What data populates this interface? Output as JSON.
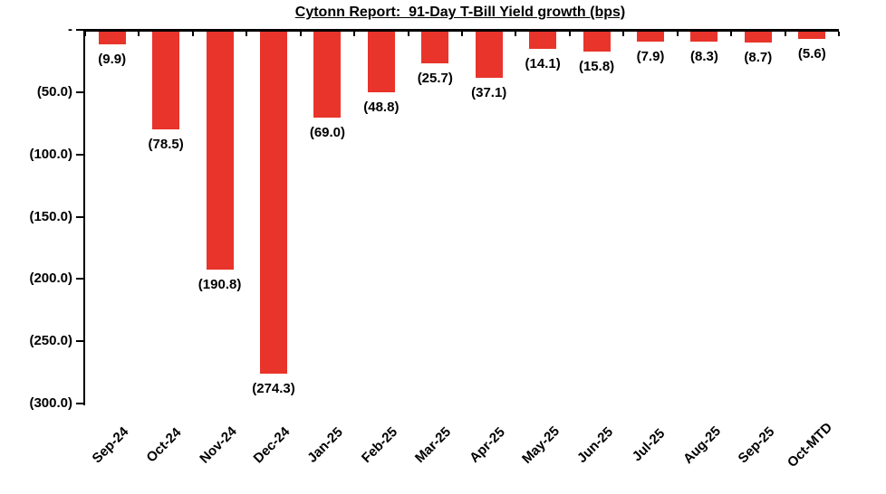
{
  "chart_data": {
    "type": "bar",
    "title": "Cytonn Report:  91-Day T-Bill Yield growth (bps)",
    "categories": [
      "Sep-24",
      "Oct-24",
      "Nov-24",
      "Dec-24",
      "Jan-25",
      "Feb-25",
      "Mar-25",
      "Apr-25",
      "May-25",
      "Jun-25",
      "Jul-25",
      "Aug-25",
      "Sep-25",
      "Oct-MTD"
    ],
    "values": [
      -9.9,
      -78.5,
      -190.8,
      -274.3,
      -69.0,
      -48.8,
      -25.7,
      -37.1,
      -14.1,
      -15.8,
      -7.9,
      -8.3,
      -8.7,
      -5.6
    ],
    "data_labels": [
      "(9.9)",
      "(78.5)",
      "(190.8)",
      "(274.3)",
      "(69.0)",
      "(48.8)",
      "(25.7)",
      "(37.1)",
      "(14.1)",
      "(15.8)",
      "(7.9)",
      "(8.3)",
      "(8.7)",
      "(5.6)"
    ],
    "ytick_values": [
      0,
      -50,
      -100,
      -150,
      -200,
      -250,
      -300
    ],
    "ytick_labels": [
      "-",
      "(50.0)",
      "(100.0)",
      "(150.0)",
      "(200.0)",
      "(250.0)",
      "(300.0)"
    ],
    "ylim": [
      -300,
      0
    ],
    "xlabel": "",
    "ylabel": "",
    "legend": "none",
    "grid": false,
    "bar_color": "#E8342A",
    "axis_color": "#000000",
    "value_format": "accounting-parentheses",
    "bar_direction": "down-from-zero",
    "x_label_rotation_deg": 45
  }
}
